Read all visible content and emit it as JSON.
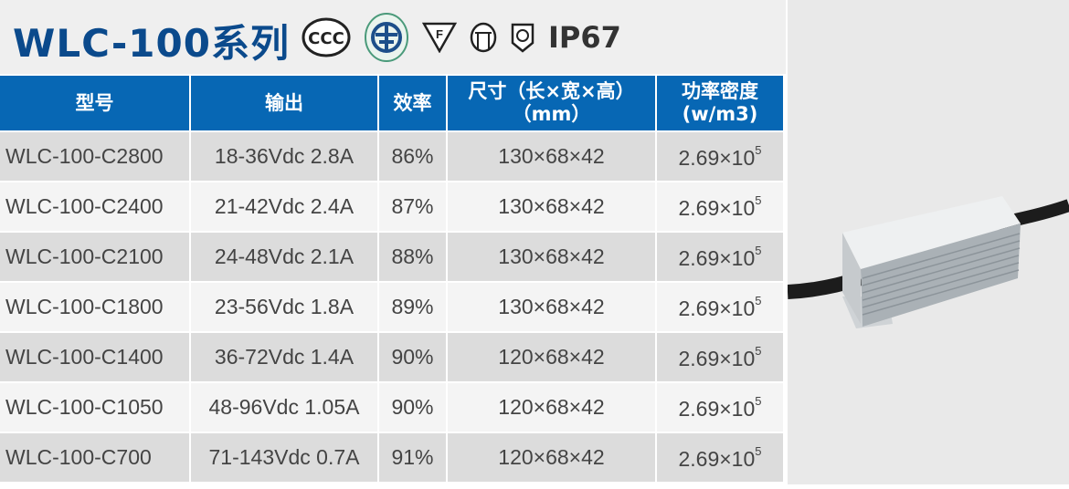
{
  "title": "WLC-100系列",
  "certifications": [
    "ccc-icon",
    "energy-saving-cert-icon",
    "f-mark-icon",
    "safety-class-icon",
    "protection-icon"
  ],
  "ip_rating": "IP67",
  "table": {
    "headers": [
      "型号",
      "输出",
      "效率",
      "尺寸（长×宽×高）\n（mm）",
      "功率密度\n(w/m3)"
    ],
    "rows": [
      {
        "model": "WLC-100-C2800",
        "output": "18-36Vdc 2.8A",
        "efficiency": "86%",
        "size": "130×68×42",
        "density": "2.69×10",
        "exp": "5"
      },
      {
        "model": "WLC-100-C2400",
        "output": "21-42Vdc 2.4A",
        "efficiency": "87%",
        "size": "130×68×42",
        "density": "2.69×10",
        "exp": "5"
      },
      {
        "model": "WLC-100-C2100",
        "output": "24-48Vdc 2.1A",
        "efficiency": "88%",
        "size": "130×68×42",
        "density": "2.69×10",
        "exp": "5"
      },
      {
        "model": "WLC-100-C1800",
        "output": "23-56Vdc 1.8A",
        "efficiency": "89%",
        "size": "130×68×42",
        "density": "2.69×10",
        "exp": "5"
      },
      {
        "model": "WLC-100-C1400",
        "output": "36-72Vdc 1.4A",
        "efficiency": "90%",
        "size": "120×68×42",
        "density": "2.69×10",
        "exp": "5"
      },
      {
        "model": "WLC-100-C1050",
        "output": "48-96Vdc 1.05A",
        "efficiency": "90%",
        "size": "120×68×42",
        "density": "2.69×10",
        "exp": "5"
      },
      {
        "model": "WLC-100-C700",
        "output": "71-143Vdc 0.7A",
        "efficiency": "91%",
        "size": "120×68×42",
        "density": "2.69×10",
        "exp": "5"
      }
    ]
  },
  "colors": {
    "header_blue": "#0767b4",
    "title_blue": "#0b4a8c"
  }
}
